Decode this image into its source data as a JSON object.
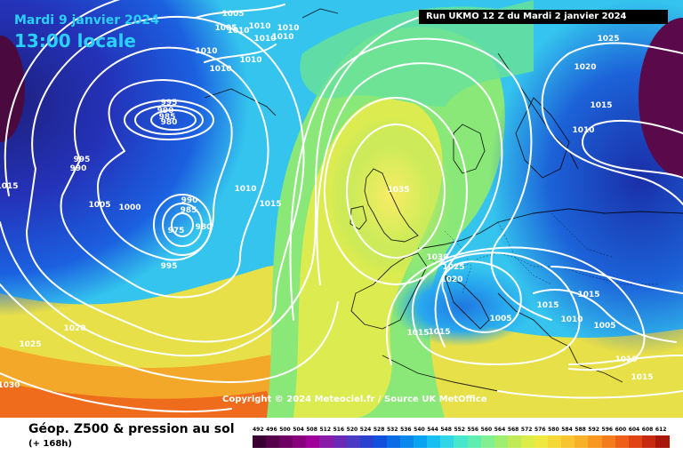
{
  "header": {
    "date": "Mardi 9 janvier 2024",
    "time": "13:00 locale",
    "run": "Run UKMO 12 Z du Mardi 2 janvier 2024"
  },
  "copyright": "Copyright © 2024 Meteociel.fr / Source UK MetOffice",
  "footer": {
    "title": "Géop. Z500 & pression au sol",
    "subtitle": "(+ 168h)"
  },
  "isobar_labels": [
    "1005",
    "1010",
    "1010",
    "1010",
    "1005",
    "1010",
    "1010",
    "1010",
    "1010",
    "1010",
    "1025",
    "1020",
    "1015",
    "1010",
    "995",
    "990",
    "985",
    "980",
    "995",
    "990",
    "1015",
    "1005",
    "1000",
    "990",
    "985",
    "980",
    "975",
    "995",
    "1010",
    "1015",
    "1035",
    "1030",
    "1025",
    "1020",
    "1015",
    "1015",
    "1005",
    "1015",
    "1010",
    "1005",
    "1010",
    "1015",
    "1015",
    "1025",
    "1020",
    "1030"
  ],
  "legend": {
    "values": [
      "492",
      "496",
      "500",
      "504",
      "508",
      "512",
      "516",
      "520",
      "524",
      "528",
      "532",
      "536",
      "540",
      "544",
      "548",
      "552",
      "556",
      "560",
      "564",
      "568",
      "572",
      "576",
      "580",
      "584",
      "588",
      "592",
      "596",
      "600",
      "604",
      "608",
      "612"
    ],
    "colors": [
      "#3a0033",
      "#55004a",
      "#6e0063",
      "#88007c",
      "#a0009a",
      "#8a1aa8",
      "#6a2ab5",
      "#4b3ac4",
      "#2a40d0",
      "#1050dc",
      "#0a6ce6",
      "#0a88ee",
      "#08a4f2",
      "#18c0f2",
      "#30d6e6",
      "#48e6cc",
      "#60eeb0",
      "#80f090",
      "#a0ee70",
      "#c0ea58",
      "#dcec48",
      "#eee840",
      "#f4d838",
      "#f8c430",
      "#f8b028",
      "#f89820",
      "#f47c1c",
      "#ee6018",
      "#e04414",
      "#c82a10",
      "#a8160c"
    ]
  }
}
